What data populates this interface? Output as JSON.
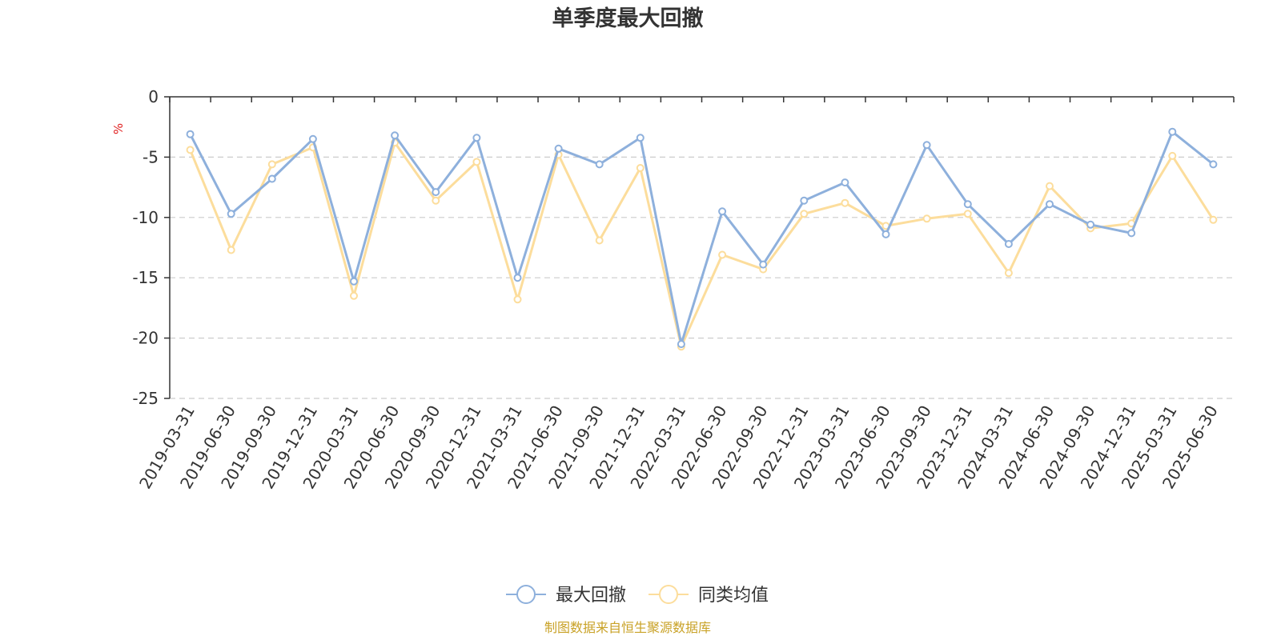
{
  "chart_data": {
    "type": "line",
    "title": "单季度最大回撤",
    "ylabel": "%",
    "ylim": [
      -25,
      0
    ],
    "yticks": [
      0,
      -5,
      -10,
      -15,
      -20,
      -25
    ],
    "grid": true,
    "legend_position": "bottom-center",
    "categories": [
      "2019-03-31",
      "2019-06-30",
      "2019-09-30",
      "2019-12-31",
      "2020-03-31",
      "2020-06-30",
      "2020-09-30",
      "2020-12-31",
      "2021-03-31",
      "2021-06-30",
      "2021-09-30",
      "2021-12-31",
      "2022-03-31",
      "2022-06-30",
      "2022-09-30",
      "2022-12-31",
      "2023-03-31",
      "2023-06-30",
      "2023-09-30",
      "2023-12-31",
      "2024-03-31",
      "2024-06-30",
      "2024-09-30",
      "2024-12-31",
      "2025-03-31",
      "2025-06-30"
    ],
    "series": [
      {
        "name": "最大回撤",
        "color": "#8eb0dc",
        "values": [
          -3.1,
          -9.7,
          -6.8,
          -3.5,
          -15.3,
          -3.2,
          -7.9,
          -3.4,
          -15.0,
          -4.3,
          -5.6,
          -3.4,
          -20.5,
          -9.5,
          -13.9,
          -8.6,
          -7.1,
          -11.4,
          -4.0,
          -8.9,
          -12.2,
          -8.9,
          -10.6,
          -11.3,
          -2.9,
          -5.6
        ]
      },
      {
        "name": "同类均值",
        "color": "#fcdd9c",
        "values": [
          -4.4,
          -12.7,
          -5.6,
          -4.2,
          -16.5,
          -3.8,
          -8.6,
          -5.4,
          -16.8,
          -4.8,
          -11.9,
          -5.9,
          -20.7,
          -13.1,
          -14.3,
          -9.7,
          -8.8,
          -10.7,
          -10.1,
          -9.7,
          -14.6,
          -7.4,
          -10.9,
          -10.5,
          -4.9,
          -10.2
        ]
      }
    ],
    "source": "制图数据来自恒生聚源数据库",
    "unit_color": "#e02020",
    "source_color": "#c9a227"
  }
}
